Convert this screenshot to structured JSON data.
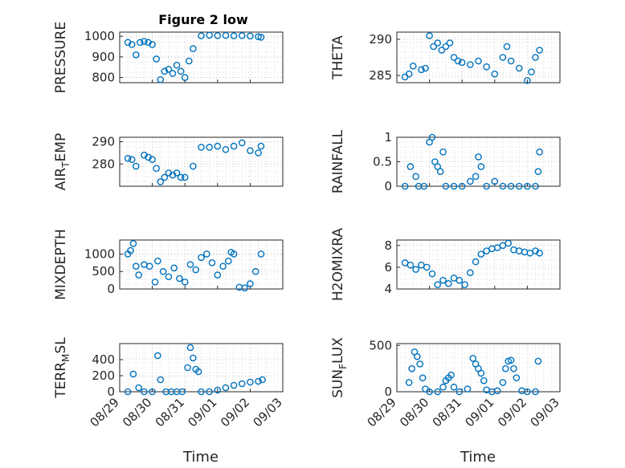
{
  "figure_title": "Figure 2 low",
  "xlabel": "Time",
  "x_ticks": [
    "08/29",
    "08/30",
    "08/31",
    "09/01",
    "09/02",
    "09/03"
  ],
  "marker_color": "#0072BD",
  "chart_data": [
    {
      "type": "scatter",
      "ylabel": "PRESSURE",
      "ylim": [
        775,
        1020
      ],
      "yticks": [
        "800",
        "900",
        "1000"
      ],
      "ytickvals": [
        800,
        900,
        1000
      ],
      "x": [
        "08/29 06:00",
        "08/29 09:00",
        "08/29 12:00",
        "08/29 15:00",
        "08/29 18:00",
        "08/29 21:00",
        "08/30 00:00",
        "08/30 03:00",
        "08/30 06:00",
        "08/30 09:00",
        "08/30 12:00",
        "08/30 15:00",
        "08/30 18:00",
        "08/30 21:00",
        "08/31 00:00",
        "08/31 03:00",
        "08/31 06:00",
        "08/31 12:00",
        "08/31 18:00",
        "09/01 00:00",
        "09/01 06:00",
        "09/01 12:00",
        "09/01 18:00",
        "09/02 00:00",
        "09/02 06:00",
        "09/02 08:00"
      ],
      "y": [
        970,
        960,
        910,
        970,
        975,
        970,
        960,
        890,
        790,
        830,
        840,
        820,
        860,
        830,
        800,
        880,
        940,
        1002,
        1005,
        1003,
        1004,
        1002,
        1003,
        1001,
        998,
        995
      ]
    },
    {
      "type": "scatter",
      "ylabel": "THETA",
      "ylim": [
        284,
        291
      ],
      "yticks": [
        "285",
        "290"
      ],
      "ytickvals": [
        285,
        290
      ],
      "x": [
        "08/29 06:00",
        "08/29 09:00",
        "08/29 12:00",
        "08/29 18:00",
        "08/29 21:00",
        "08/30 00:00",
        "08/30 03:00",
        "08/30 06:00",
        "08/30 09:00",
        "08/30 12:00",
        "08/30 15:00",
        "08/30 18:00",
        "08/30 21:00",
        "08/31 00:00",
        "08/31 06:00",
        "08/31 12:00",
        "08/31 18:00",
        "09/01 00:00",
        "09/01 06:00",
        "09/01 09:00",
        "09/01 12:00",
        "09/01 18:00",
        "09/02 00:00",
        "09/02 03:00",
        "09/02 06:00",
        "09/02 09:00"
      ],
      "y": [
        284.8,
        285.2,
        286.3,
        285.8,
        286.0,
        290.5,
        289.0,
        289.5,
        288.5,
        289.0,
        289.5,
        287.5,
        287.0,
        286.8,
        286.5,
        287.0,
        286.2,
        285.2,
        287.5,
        289.0,
        287.0,
        286.0,
        284.3,
        285.5,
        287.5,
        288.5
      ]
    },
    {
      "type": "scatter",
      "ylabel": "AIR_TEMP",
      "ylim": [
        270,
        292
      ],
      "yticks": [
        "280",
        "290"
      ],
      "ytickvals": [
        280,
        290
      ],
      "x": [
        "08/29 06:00",
        "08/29 09:00",
        "08/29 12:00",
        "08/29 18:00",
        "08/29 21:00",
        "08/30 00:00",
        "08/30 03:00",
        "08/30 06:00",
        "08/30 09:00",
        "08/30 12:00",
        "08/30 15:00",
        "08/30 18:00",
        "08/30 21:00",
        "08/31 00:00",
        "08/31 06:00",
        "08/31 12:00",
        "08/31 18:00",
        "09/01 00:00",
        "09/01 06:00",
        "09/01 12:00",
        "09/01 18:00",
        "09/02 00:00",
        "09/02 06:00",
        "09/02 08:00"
      ],
      "y": [
        282.5,
        282,
        279,
        284,
        283,
        282,
        278,
        272,
        274,
        276,
        275,
        276,
        274,
        274,
        279,
        287.5,
        287.5,
        288,
        286.5,
        288,
        289.5,
        286,
        285,
        288
      ]
    },
    {
      "type": "scatter",
      "ylabel": "RAINFALL",
      "ylim": [
        0,
        1
      ],
      "yticks": [
        "0",
        "0.5",
        "1"
      ],
      "ytickvals": [
        0,
        0.5,
        1
      ],
      "x": [
        "08/29 06:00",
        "08/29 10:00",
        "08/29 14:00",
        "08/29 16:00",
        "08/29 20:00",
        "08/30 00:00",
        "08/30 02:00",
        "08/30 04:00",
        "08/30 06:00",
        "08/30 08:00",
        "08/30 10:00",
        "08/30 12:00",
        "08/30 18:00",
        "08/31 00:00",
        "08/31 06:00",
        "08/31 10:00",
        "08/31 12:00",
        "08/31 14:00",
        "08/31 18:00",
        "09/01 00:00",
        "09/01 06:00",
        "09/01 12:00",
        "09/01 18:00",
        "09/02 00:00",
        "09/02 06:00",
        "09/02 08:00",
        "09/02 09:00"
      ],
      "y": [
        0,
        0.4,
        0.2,
        0,
        0,
        0.9,
        1.0,
        0.5,
        0.4,
        0.3,
        0.7,
        0,
        0,
        0,
        0.1,
        0.2,
        0.6,
        0.4,
        0,
        0.1,
        0,
        0,
        0,
        0,
        0,
        0.3,
        0.7
      ]
    },
    {
      "type": "scatter",
      "ylabel": "MIXDEPTH",
      "ylim": [
        0,
        1400
      ],
      "yticks": [
        "0",
        "500",
        "1000"
      ],
      "ytickvals": [
        0,
        500,
        1000
      ],
      "x": [
        "08/29 06:00",
        "08/29 08:00",
        "08/29 10:00",
        "08/29 12:00",
        "08/29 14:00",
        "08/29 18:00",
        "08/29 22:00",
        "08/30 02:00",
        "08/30 04:00",
        "08/30 08:00",
        "08/30 12:00",
        "08/30 16:00",
        "08/30 20:00",
        "08/31 00:00",
        "08/31 04:00",
        "08/31 08:00",
        "08/31 12:00",
        "08/31 16:00",
        "08/31 20:00",
        "09/01 00:00",
        "09/01 04:00",
        "09/01 08:00",
        "09/01 10:00",
        "09/01 12:00",
        "09/01 16:00",
        "09/01 20:00",
        "09/02 00:00",
        "09/02 04:00",
        "09/02 08:00"
      ],
      "y": [
        1000,
        1100,
        1300,
        650,
        400,
        700,
        650,
        200,
        800,
        500,
        350,
        600,
        300,
        200,
        700,
        550,
        900,
        1000,
        750,
        400,
        650,
        800,
        1050,
        1000,
        50,
        30,
        150,
        500,
        1000
      ]
    },
    {
      "type": "scatter",
      "ylabel": "H2OMIXRA",
      "ylim": [
        4,
        8.5
      ],
      "yticks": [
        "4",
        "6",
        "8"
      ],
      "ytickvals": [
        4,
        6,
        8
      ],
      "x": [
        "08/29 06:00",
        "08/29 10:00",
        "08/29 14:00",
        "08/29 18:00",
        "08/29 22:00",
        "08/30 02:00",
        "08/30 06:00",
        "08/30 10:00",
        "08/30 14:00",
        "08/30 18:00",
        "08/30 22:00",
        "08/31 02:00",
        "08/31 06:00",
        "08/31 10:00",
        "08/31 14:00",
        "08/31 18:00",
        "08/31 22:00",
        "09/01 02:00",
        "09/01 06:00",
        "09/01 10:00",
        "09/01 14:00",
        "09/01 18:00",
        "09/01 22:00",
        "09/02 02:00",
        "09/02 06:00",
        "09/02 09:00"
      ],
      "y": [
        6.4,
        6.2,
        5.8,
        6.2,
        6.0,
        5.4,
        4.4,
        4.8,
        4.5,
        5.0,
        4.8,
        4.4,
        5.5,
        6.5,
        7.2,
        7.5,
        7.7,
        7.8,
        8.0,
        8.2,
        7.6,
        7.5,
        7.4,
        7.3,
        7.5,
        7.3
      ]
    },
    {
      "type": "scatter",
      "ylabel": "TERR_MSL",
      "ylim": [
        0,
        600
      ],
      "yticks": [
        "0",
        "200",
        "400"
      ],
      "ytickvals": [
        0,
        200,
        400
      ],
      "x": [
        "08/29 06:00",
        "08/29 10:00",
        "08/29 14:00",
        "08/29 18:00",
        "08/30 00:00",
        "08/30 04:00",
        "08/30 06:00",
        "08/30 10:00",
        "08/30 14:00",
        "08/30 18:00",
        "08/30 22:00",
        "08/31 02:00",
        "08/31 04:00",
        "08/31 06:00",
        "08/31 08:00",
        "08/31 10:00",
        "08/31 12:00",
        "08/31 18:00",
        "09/01 00:00",
        "09/01 06:00",
        "09/01 12:00",
        "09/01 18:00",
        "09/02 00:00",
        "09/02 06:00",
        "09/02 09:00"
      ],
      "y": [
        0,
        220,
        50,
        0,
        0,
        450,
        150,
        0,
        0,
        0,
        0,
        300,
        550,
        420,
        280,
        250,
        0,
        0,
        20,
        50,
        80,
        100,
        120,
        130,
        150
      ]
    },
    {
      "type": "scatter",
      "ylabel": "SUN_FLUX",
      "ylim": [
        0,
        520
      ],
      "yticks": [
        "0",
        "500"
      ],
      "ytickvals": [
        0,
        500
      ],
      "x": [
        "08/29 09:00",
        "08/29 11:00",
        "08/29 13:00",
        "08/29 15:00",
        "08/29 17:00",
        "08/29 19:00",
        "08/29 21:00",
        "08/30 00:00",
        "08/30 06:00",
        "08/30 10:00",
        "08/30 12:00",
        "08/30 14:00",
        "08/30 16:00",
        "08/30 18:00",
        "08/30 22:00",
        "08/31 04:00",
        "08/31 08:00",
        "08/31 10:00",
        "08/31 12:00",
        "08/31 14:00",
        "08/31 16:00",
        "08/31 18:00",
        "08/31 22:00",
        "09/01 02:00",
        "09/01 06:00",
        "09/01 08:00",
        "09/01 10:00",
        "09/01 12:00",
        "09/01 14:00",
        "09/01 16:00",
        "09/01 20:00",
        "09/02 00:00",
        "09/02 06:00",
        "09/02 08:00"
      ],
      "y": [
        100,
        250,
        430,
        380,
        300,
        150,
        30,
        0,
        0,
        50,
        120,
        150,
        180,
        50,
        0,
        30,
        360,
        300,
        250,
        200,
        120,
        20,
        0,
        10,
        100,
        250,
        330,
        340,
        250,
        150,
        10,
        0,
        0,
        330
      ]
    }
  ]
}
